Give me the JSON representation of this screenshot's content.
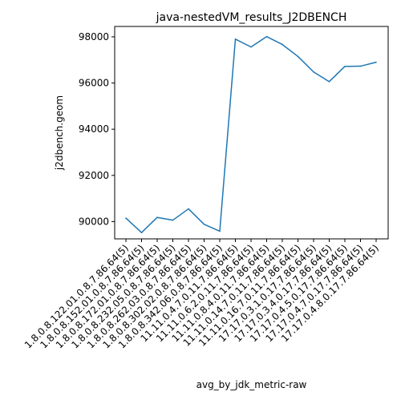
{
  "chart_data": {
    "type": "line",
    "title": "java-nestedVM_results_J2DBENCH",
    "xlabel": "avg_by_jdk_metric-raw",
    "ylabel": "j2dbench.geom",
    "grid": false,
    "legend": "none",
    "ylim": [
      89250,
      98450
    ],
    "yticks": [
      90000,
      92000,
      94000,
      96000,
      98000
    ],
    "ytick_labels": [
      "90000",
      "92000",
      "94000",
      "96000",
      "98000"
    ],
    "categories": [
      "1.8.0.8.122.01.0.8.7.86.64(5)",
      "1.8.0.8.152.01.0.8.7.86.64(5)",
      "1.8.0.8.172.01.0.8.7.86.64(5)",
      "1.8.0.8.232.05.0.8.7.86.64(5)",
      "1.8.0.8.262.03.0.8.7.86.64(5)",
      "1.8.0.8.302.02.0.8.7.86.64(5)",
      "1.8.0.8.342.06.0.8.7.86.64(5)",
      "11.11.0.4.7.0.11.7.86.64(5)",
      "11.11.0.6.2.0.11.7.86.64(5)",
      "11.11.0.8.4.0.11.7.86.64(5)",
      "11.11.0.14.7.0.11.7.86.64(5)",
      "11.11.0.16.7.0.11.7.86.64(5)",
      "17.17.0.3.1.0.17.7.86.64(5)",
      "17.17.0.3.4.0.17.7.86.64(5)",
      "17.17.0.4.5.0.17.7.86.64(5)",
      "17.17.0.4.7.0.17.7.86.64(5)",
      "17.17.0.4.8.0.17.7.86.64(5)"
    ],
    "series": [
      {
        "color": "#1f77b4",
        "values": [
          90150,
          89520,
          90180,
          90060,
          90550,
          89880,
          89580,
          97900,
          97560,
          98010,
          97670,
          97150,
          96480,
          96060,
          96720,
          96730,
          96900
        ]
      }
    ]
  }
}
